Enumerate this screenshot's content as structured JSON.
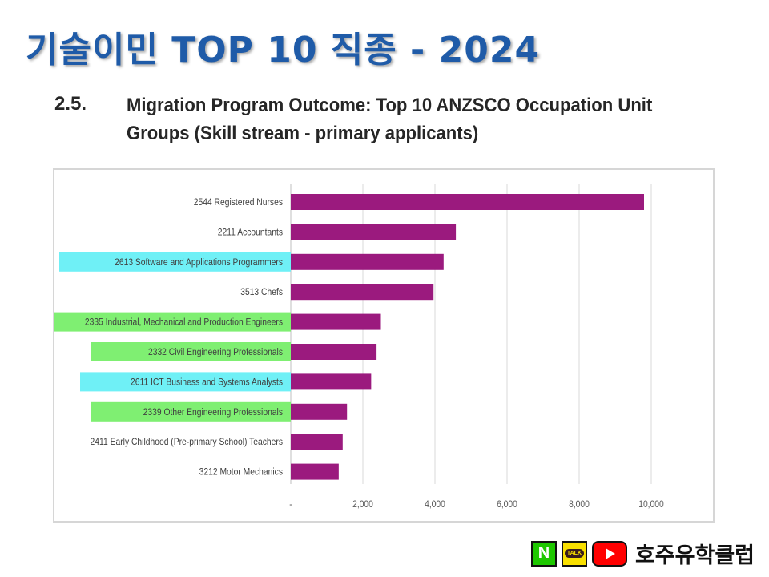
{
  "slide": {
    "title": "기술이민 TOP 10 직종 - 2024"
  },
  "section": {
    "number": "2.5.",
    "title": "Migration Program Outcome: Top 10 ANZSCO Occupation Unit Groups (Skill stream - primary applicants)"
  },
  "colors": {
    "bar": "#9b1a7e",
    "highlight_cyan": "#6ff0f6",
    "highlight_green": "#7fef72",
    "gridline": "#d9d9d9",
    "title": "#1f5ba8"
  },
  "chart_data": {
    "type": "bar",
    "orientation": "horizontal",
    "categories": [
      "2544 Registered Nurses",
      "2211 Accountants",
      "2613 Software and Applications Programmers",
      "3513 Chefs",
      "2335 Industrial, Mechanical and Production Engineers",
      "2332 Civil Engineering Professionals",
      "2611 ICT Business and Systems Analysts",
      "2339 Other Engineering Professionals",
      "2411 Early Childhood (Pre-primary School) Teachers",
      "3212 Motor Mechanics"
    ],
    "values": [
      9800,
      4580,
      4240,
      3960,
      2500,
      2380,
      2230,
      1560,
      1440,
      1330
    ],
    "highlights": [
      "none",
      "none",
      "cyan",
      "none",
      "green",
      "green",
      "cyan",
      "green",
      "none",
      "none"
    ],
    "xlim": [
      0,
      10000
    ],
    "xticks": [
      0,
      2000,
      4000,
      6000,
      8000,
      10000
    ],
    "xtick_labels": [
      "-",
      "2,000",
      "4,000",
      "6,000",
      "8,000",
      "10,000"
    ],
    "grid": true,
    "legend": "none"
  },
  "footer": {
    "brand": "호주유학클럽",
    "icons": [
      "naver-icon",
      "kakaotalk-icon",
      "youtube-icon"
    ],
    "talk_label": "TALK"
  }
}
